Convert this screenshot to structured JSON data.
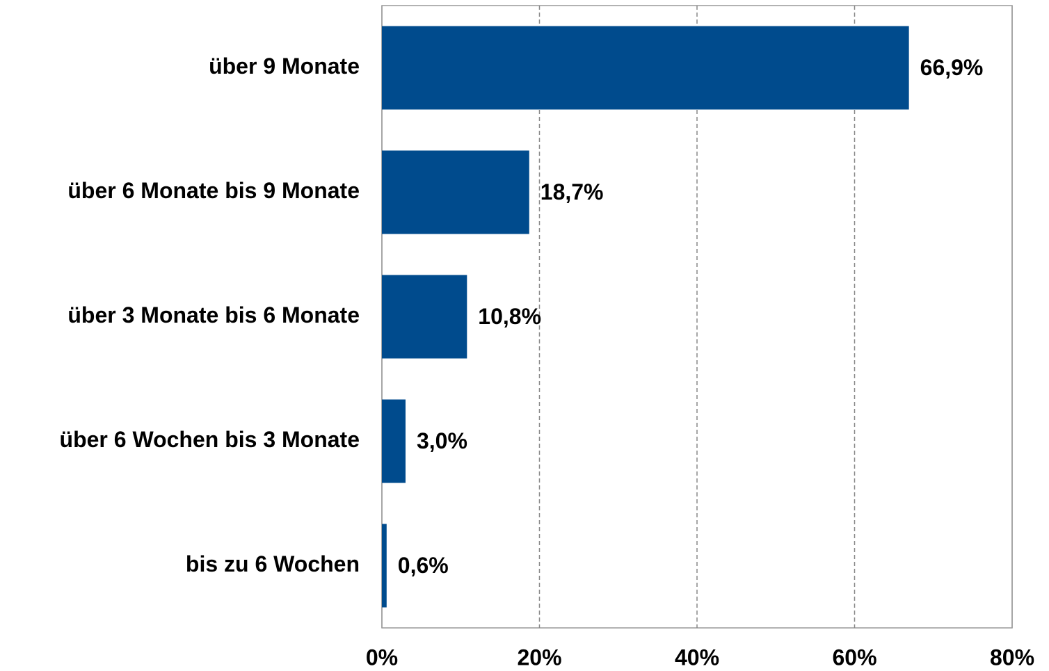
{
  "chart_data": {
    "type": "bar",
    "orientation": "horizontal",
    "categories": [
      "über 9 Monate",
      "über 6 Monate bis 9 Monate",
      "über 3 Monate bis 6 Monate",
      "über 6 Wochen bis 3 Monate",
      "bis zu 6 Wochen"
    ],
    "values": [
      66.9,
      18.7,
      10.8,
      3.0,
      0.6
    ],
    "value_labels": [
      "66,9%",
      "18,7%",
      "10,8%",
      "3,0%",
      "0,6%"
    ],
    "color": "#004b8d",
    "xlim": [
      0,
      80
    ],
    "xticks": [
      {
        "value": 0,
        "label": "0%"
      },
      {
        "value": 20,
        "label": "20%"
      },
      {
        "value": 40,
        "label": "40%"
      },
      {
        "value": 60,
        "label": "60%"
      },
      {
        "value": 80,
        "label": "80%"
      }
    ],
    "grid": true
  }
}
